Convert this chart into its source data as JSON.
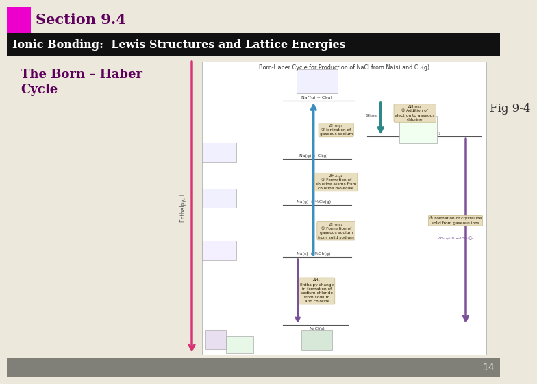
{
  "bg_color": "#ede8dc",
  "header_bg": "#111111",
  "section_bar_color": "#ee00cc",
  "section_text": "Section 9.4",
  "section_text_color": "#5c005c",
  "header_text": "Ionic Bonding:  Lewis Structures and Lattice Energies",
  "header_text_color": "#ffffff",
  "subheader_line1": "The Born – Haber",
  "subheader_line2": "Cycle",
  "subheader_color": "#5c005c",
  "fig_label": "Fig 9-4",
  "fig_label_color": "#333333",
  "diagram_title": "Born-Haber Cycle for Production of NaCl from Na(s) and Cl₂(g)",
  "page_number": "14",
  "page_number_color": "#444444",
  "diagram_bg": "#ffffff",
  "pink_arrow_color": "#d63575",
  "blue_arrow_color": "#3a8fc0",
  "purple_arrow_color": "#7a5098",
  "teal_arrow_color": "#2e8888",
  "label_bg": "#e8dfc0",
  "label_border": "#c8b888",
  "line_color": "#555555",
  "bottom_bar_color": "#808078",
  "levels": {
    "nacl": 0.9,
    "na_s_cl2": 3.0,
    "na_g_cl2": 4.6,
    "na_g_cl": 6.0,
    "na_ion_cl": 7.8,
    "na_ion_cl_ion": 6.7
  }
}
